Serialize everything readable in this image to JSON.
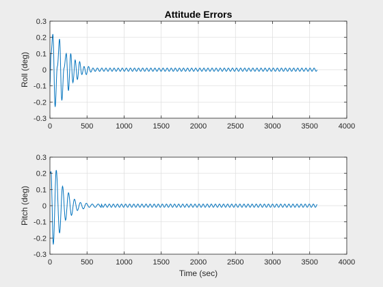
{
  "figure": {
    "title": "Attitude Errors"
  },
  "chart_data": [
    {
      "type": "line",
      "title": "Attitude Errors",
      "xlabel": "",
      "ylabel": "Roll  (deg)",
      "xlim": [
        0,
        4000
      ],
      "ylim": [
        -0.3,
        0.3
      ],
      "xticks": [
        0,
        500,
        1000,
        1500,
        2000,
        2500,
        3000,
        3500,
        4000
      ],
      "yticks": [
        -0.3,
        -0.2,
        -0.1,
        0,
        0.1,
        0.2,
        0.3
      ],
      "xtick_labels": [
        "0",
        "500",
        "1000",
        "1500",
        "2000",
        "2500",
        "3000",
        "3500",
        "4000"
      ],
      "ytick_labels": [
        "-0.3",
        "-0.2",
        "-0.1",
        "0",
        "0.1",
        "0.2",
        "0.3"
      ],
      "grid": true,
      "color": "#0072BD",
      "series": [
        {
          "x": [
            0,
            15,
            40,
            70,
            100,
            130,
            160,
            190,
            220,
            250,
            280,
            310,
            340,
            370,
            400,
            430,
            460,
            490,
            520,
            550,
            580,
            610,
            640,
            670,
            700,
            3600
          ],
          "y": [
            -0.1,
            0.1,
            0.22,
            -0.23,
            0.02,
            0.19,
            -0.19,
            0.01,
            0.1,
            -0.13,
            0.1,
            -0.08,
            0.06,
            -0.06,
            0.05,
            -0.03,
            0.02,
            -0.03,
            0.02,
            -0.015,
            0.01,
            -0.01,
            0.01,
            -0.01,
            0.01,
            0.01
          ],
          "oscillation": {
            "from_x": 700,
            "to_x": 3600,
            "period": 55,
            "amplitude": 0.01
          }
        }
      ]
    },
    {
      "type": "line",
      "title": "",
      "xlabel": "Time (sec)",
      "ylabel": "Pitch (deg)",
      "xlim": [
        0,
        4000
      ],
      "ylim": [
        -0.3,
        0.3
      ],
      "xticks": [
        0,
        500,
        1000,
        1500,
        2000,
        2500,
        3000,
        3500,
        4000
      ],
      "yticks": [
        -0.3,
        -0.2,
        -0.1,
        0,
        0.1,
        0.2,
        0.3
      ],
      "xtick_labels": [
        "0",
        "500",
        "1000",
        "1500",
        "2000",
        "2500",
        "3000",
        "3500",
        "4000"
      ],
      "ytick_labels": [
        "-0.3",
        "-0.2",
        "-0.1",
        "0",
        "0.1",
        "0.2",
        "0.3"
      ],
      "grid": true,
      "color": "#0072BD",
      "series": [
        {
          "x": [
            0,
            15,
            45,
            85,
            130,
            170,
            210,
            250,
            290,
            330,
            370,
            410,
            450,
            490,
            530,
            570,
            610,
            650,
            690,
            3600
          ],
          "y": [
            0.2,
            0.21,
            -0.24,
            0.22,
            -0.17,
            0.12,
            -0.09,
            0.08,
            -0.06,
            0.04,
            -0.03,
            0.02,
            -0.02,
            0.015,
            -0.01,
            0.01,
            -0.01,
            0.01,
            -0.01,
            0.0
          ],
          "oscillation": {
            "from_x": 690,
            "to_x": 3600,
            "period": 55,
            "amplitude": 0.01
          }
        }
      ]
    }
  ]
}
